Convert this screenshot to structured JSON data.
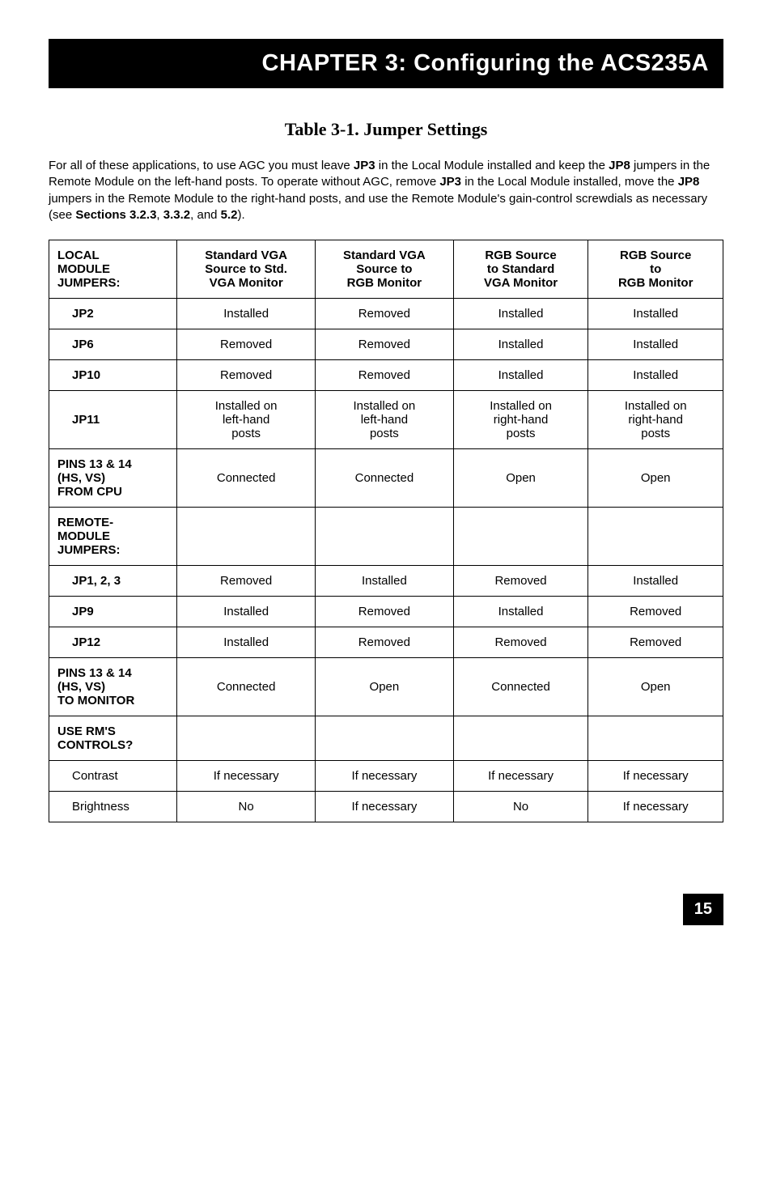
{
  "header": {
    "title": "CHAPTER 3: Configuring the ACS235A"
  },
  "table_title": "Table 3-1. Jumper Settings",
  "intro": {
    "t0": "For all of these applications, to use AGC you must leave ",
    "b1": "JP3",
    "t1": " in the Local Module installed and keep the ",
    "b2": "JP8",
    "t2": " jumpers in the Remote Module on the left-hand posts. To operate without AGC, remove ",
    "b3": "JP3",
    "t3": " in the Local Module installed, move the ",
    "b4": "JP8",
    "t4": " jumpers in the Remote Module to the right-hand posts, and use the Remote Module's gain-control screwdials as necessary (see ",
    "b5": "Sections 3.2.3",
    "t5": ", ",
    "b6": "3.3.2",
    "t6": ", and ",
    "b7": "5.2",
    "t7": ")."
  },
  "cols": {
    "c1": {
      "l1": "Standard VGA",
      "l2": "Source to Std.",
      "l3": "VGA Monitor"
    },
    "c2": {
      "l1": "Standard VGA",
      "l2": "Source to",
      "l3": "RGB Monitor"
    },
    "c3": {
      "l1": "RGB Source",
      "l2": "to Standard",
      "l3": "VGA Monitor"
    },
    "c4": {
      "l1": "RGB Source",
      "l2": "to",
      "l3": "RGB Monitor"
    }
  },
  "sections": {
    "local": {
      "l1": "LOCAL",
      "l2": "MODULE",
      "l3": "JUMPERS:"
    },
    "remote": {
      "l1": "REMOTE-",
      "l2": "MODULE",
      "l3": "JUMPERS:"
    },
    "pins_cpu": {
      "l1": "PINS 13 & 14",
      "l2": "(HS, VS)",
      "l3": "FROM CPU"
    },
    "pins_monitor": {
      "l1": "PINS 13 & 14",
      "l2": "(HS, VS)",
      "l3": "TO MONITOR"
    },
    "use_rm": {
      "l1": "USE RM'S",
      "l2": "CONTROLS?"
    }
  },
  "rows": {
    "jp2": {
      "label": "JP2",
      "v": [
        "Installed",
        "Removed",
        "Installed",
        "Installed"
      ]
    },
    "jp6": {
      "label": "JP6",
      "v": [
        "Removed",
        "Removed",
        "Installed",
        "Installed"
      ]
    },
    "jp10": {
      "label": "JP10",
      "v": [
        "Removed",
        "Removed",
        "Installed",
        "Installed"
      ]
    },
    "jp11": {
      "label": "JP11",
      "v0": {
        "l1": "Installed on",
        "l2": "left-hand",
        "l3": "posts"
      },
      "v1": {
        "l1": "Installed on",
        "l2": "left-hand",
        "l3": "posts"
      },
      "v2": {
        "l1": "Installed on",
        "l2": "right-hand",
        "l3": "posts"
      },
      "v3": {
        "l1": "Installed on",
        "l2": "right-hand",
        "l3": "posts"
      }
    },
    "pins_cpu": {
      "v": [
        "Connected",
        "Connected",
        "Open",
        "Open"
      ]
    },
    "jp123": {
      "label": "JP1, 2, 3",
      "v": [
        "Removed",
        "Installed",
        "Removed",
        "Installed"
      ]
    },
    "jp9": {
      "label": "JP9",
      "v": [
        "Installed",
        "Removed",
        "Installed",
        "Removed"
      ]
    },
    "jp12": {
      "label": "JP12",
      "v": [
        "Installed",
        "Removed",
        "Removed",
        "Removed"
      ]
    },
    "pins_monitor": {
      "v": [
        "Connected",
        "Open",
        "Connected",
        "Open"
      ]
    },
    "contrast": {
      "label": "Contrast",
      "v": [
        "If necessary",
        "If necessary",
        "If necessary",
        "If necessary"
      ]
    },
    "brightness": {
      "label": "Brightness",
      "v": [
        "No",
        "If necessary",
        "No",
        "If necessary"
      ]
    }
  },
  "page_number": "15"
}
